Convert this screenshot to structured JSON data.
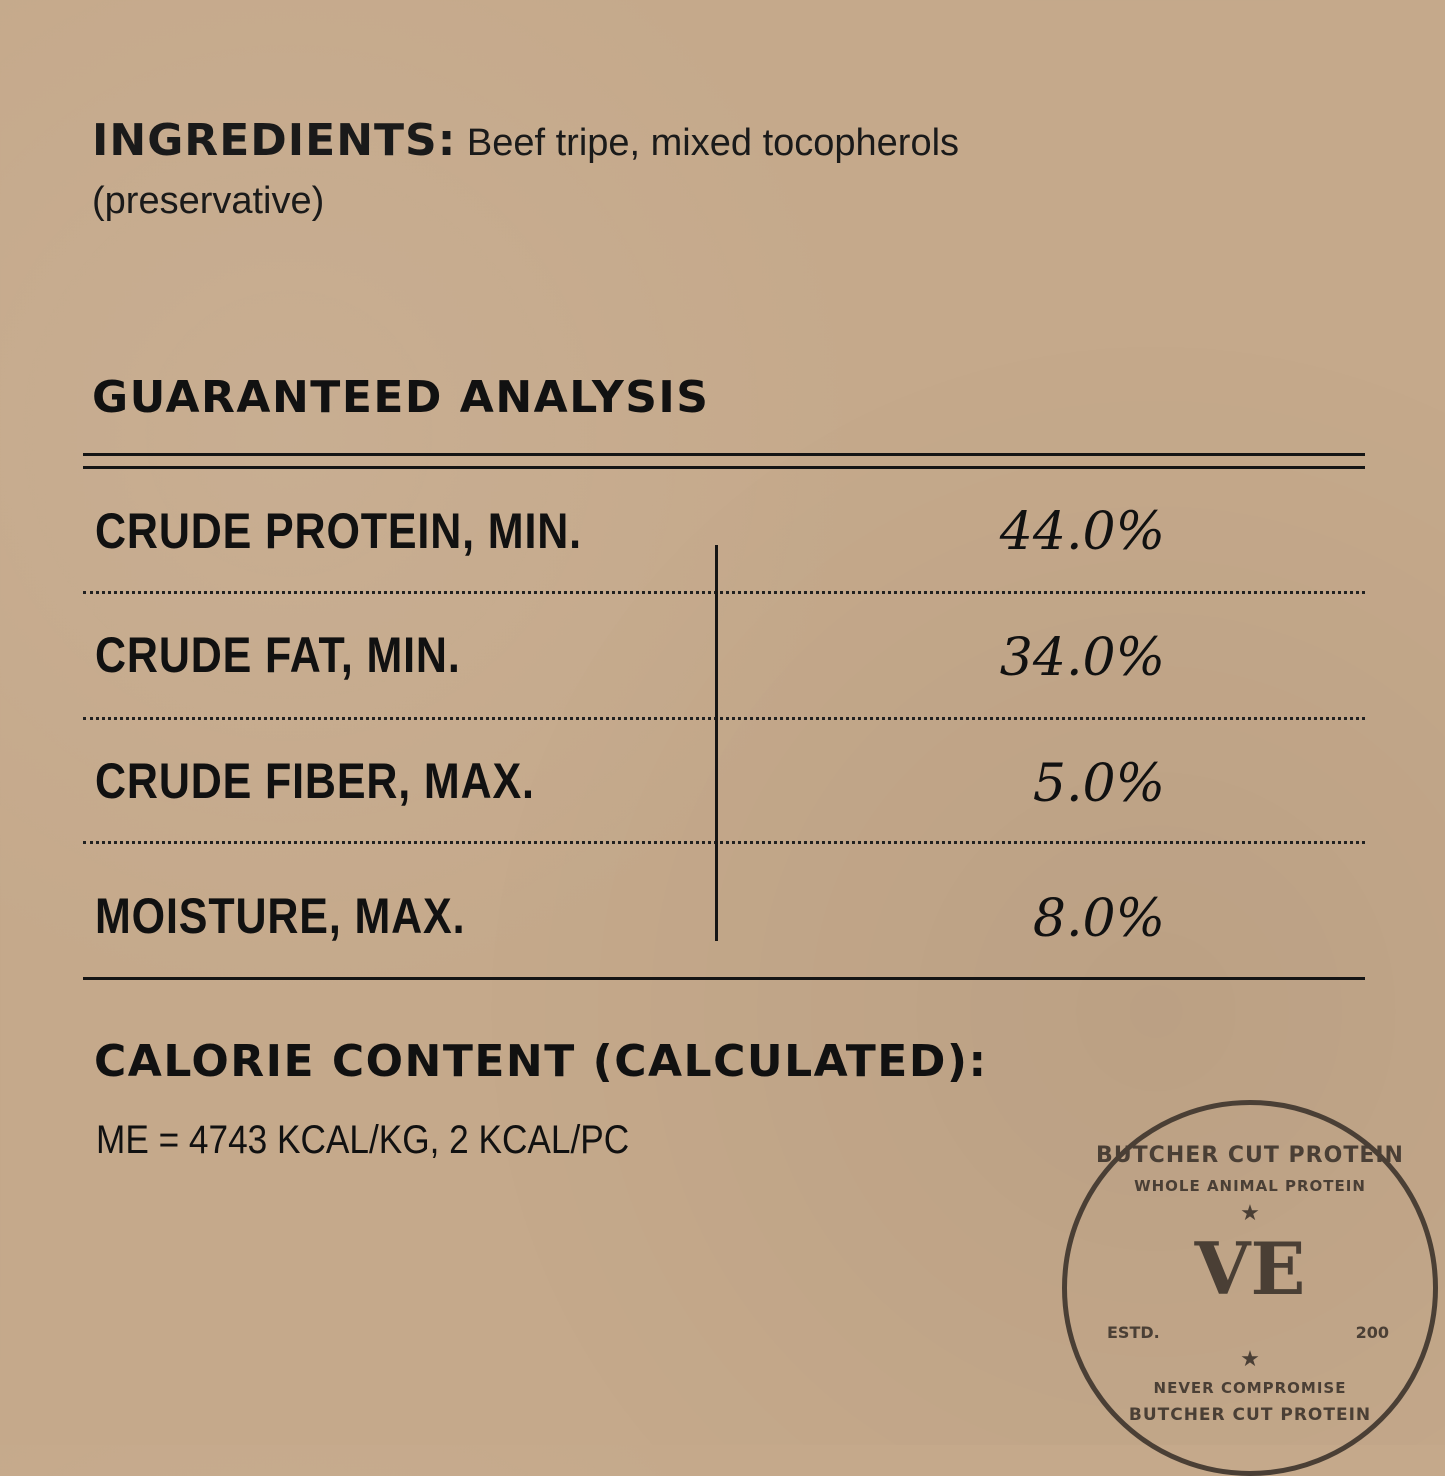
{
  "ingredients": {
    "heading": "INGREDIENTS:",
    "text": "Beef tripe, mixed tocopherols (preservative)"
  },
  "analysis": {
    "heading": "GUARANTEED ANALYSIS",
    "rows": [
      {
        "label": "CRUDE PROTEIN, MIN.",
        "value": "44.0%"
      },
      {
        "label": "CRUDE FAT, MIN.",
        "value": "34.0%"
      },
      {
        "label": "CRUDE FIBER, MAX.",
        "value": "5.0%"
      },
      {
        "label": "MOISTURE, MAX.",
        "value": "8.0%"
      }
    ]
  },
  "calorie": {
    "heading": "CALORIE CONTENT (CALCULATED):",
    "text": "ME = 4743 KCAL/KG, 2 KCAL/PC"
  },
  "stamp": {
    "outer": "BUTCHER CUT PROTEIN",
    "inner": "WHOLE ANIMAL PROTEIN",
    "monogram": "VE",
    "estd": "ESTD.",
    "year": "200",
    "bottom": "NEVER COMPROMISE",
    "outer2": "BUTCHER CUT PROTEIN",
    "color": "#4a3f35"
  }
}
